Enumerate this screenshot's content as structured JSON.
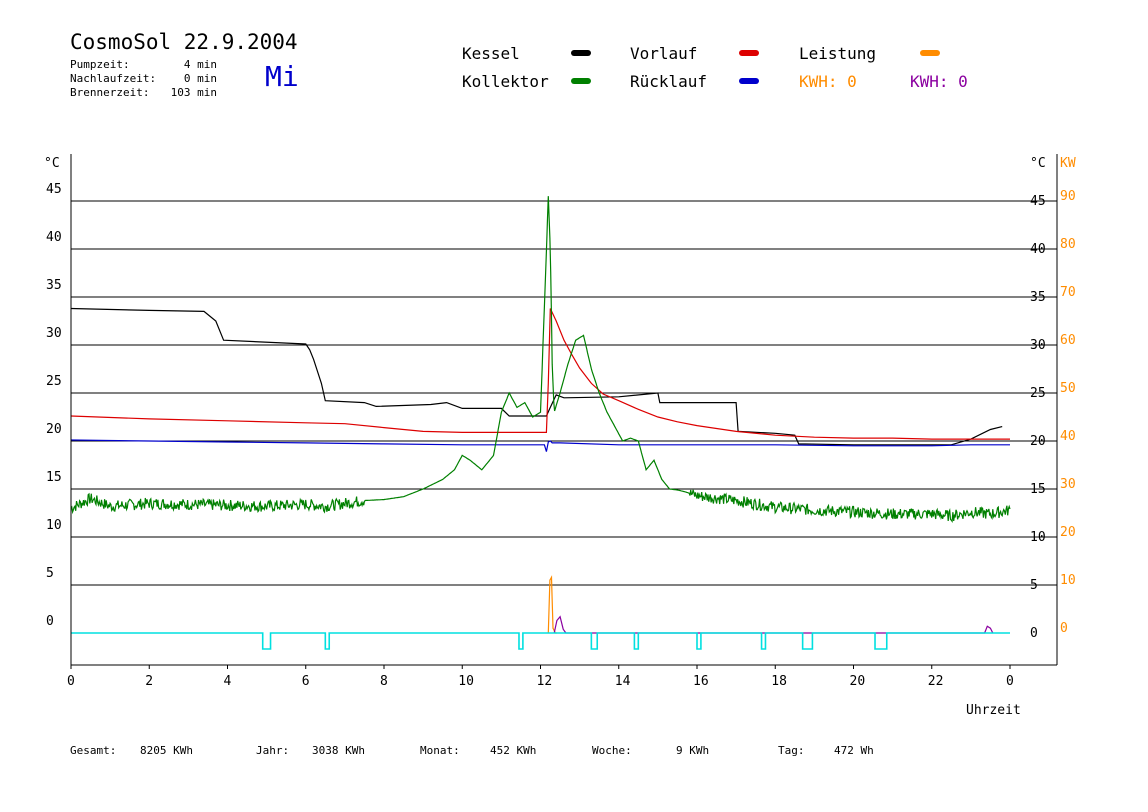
{
  "header": {
    "title": "CosmoSol 22.9.2004",
    "day": "Mi",
    "pump_label": "Pumpzeit:",
    "pump_value": "4 min",
    "follow_label": "Nachlaufzeit:",
    "follow_value": "0 min",
    "burner_label": "Brennerzeit:",
    "burner_value": "103 min"
  },
  "legend": {
    "kessel": "Kessel",
    "kollektor": "Kollektor",
    "vorlauf": "Vorlauf",
    "ruecklauf": "Rücklauf",
    "leistung": "Leistung",
    "kwh1": "KWH: 0",
    "kwh2": "KWH: 0"
  },
  "colors": {
    "kessel": "#000000",
    "kollektor": "#008000",
    "vorlauf": "#dd0000",
    "ruecklauf": "#0000cc",
    "leistung": "#ff8c00",
    "kwh2": "#8b00a0",
    "pump": "#00e0e0"
  },
  "footer": {
    "gesamt_label": "Gesamt:",
    "gesamt_value": "8205 KWh",
    "jahr_label": "Jahr:",
    "jahr_value": "3038 KWh",
    "monat_label": "Monat:",
    "monat_value": "452 KWh",
    "woche_label": "Woche:",
    "woche_value": "9 KWh",
    "tag_label": "Tag:",
    "tag_value": "472 Wh"
  },
  "chart_data": {
    "type": "line",
    "xlabel": "Uhrzeit",
    "ylabel_left": "°C",
    "ylabel_right": "°C",
    "ylabel_right2": "KW",
    "x_ticks": [
      "0",
      "2",
      "4",
      "6",
      "8",
      "10",
      "12",
      "14",
      "16",
      "18",
      "20",
      "22",
      "0"
    ],
    "y_ticks": [
      0,
      5,
      10,
      15,
      20,
      25,
      30,
      35,
      40,
      45
    ],
    "y2_ticks": [
      0,
      10,
      20,
      30,
      40,
      50,
      60,
      70,
      80,
      90
    ],
    "ylim": [
      -3,
      50
    ],
    "xlim": [
      0,
      24
    ],
    "series": [
      {
        "name": "Kessel",
        "color_key": "kessel",
        "x": [
          0,
          2,
          3.4,
          3.7,
          3.9,
          6.0,
          6.1,
          6.2,
          6.4,
          6.5,
          7.5,
          7.8,
          9.2,
          9.6,
          10.0,
          11.0,
          11.2,
          12.15,
          12.25,
          12.4,
          12.6,
          14.0,
          15.0,
          15.05,
          17.0,
          17.05,
          18.0,
          18.5,
          18.6,
          20.0,
          22.5,
          23.0,
          23.5,
          23.8
        ],
        "y": [
          33.8,
          33.6,
          33.5,
          32.5,
          30.5,
          30.1,
          29.5,
          28.5,
          26.0,
          24.2,
          24.0,
          23.6,
          23.8,
          24.0,
          23.4,
          23.4,
          22.6,
          22.6,
          23.5,
          24.8,
          24.5,
          24.6,
          25.0,
          24.0,
          24.0,
          21.0,
          20.8,
          20.6,
          19.7,
          19.6,
          19.6,
          20.2,
          21.2,
          21.5
        ]
      },
      {
        "name": "Vorlauf",
        "color_key": "vorlauf",
        "x": [
          0,
          2,
          4,
          6,
          7,
          8,
          9,
          10,
          11,
          12.1,
          12.15,
          12.2,
          12.25,
          12.4,
          12.6,
          12.8,
          13.0,
          13.3,
          13.6,
          14,
          14.5,
          15,
          15.5,
          16,
          17,
          18,
          19,
          20,
          21,
          22,
          23,
          24
        ],
        "y": [
          22.6,
          22.3,
          22.1,
          21.9,
          21.8,
          21.4,
          21.0,
          20.9,
          20.9,
          20.9,
          20.9,
          26.0,
          33.8,
          32.5,
          30.5,
          29.0,
          27.6,
          26.0,
          24.9,
          24.2,
          23.3,
          22.5,
          22.0,
          21.6,
          21.0,
          20.6,
          20.4,
          20.3,
          20.3,
          20.2,
          20.2,
          20.2
        ]
      },
      {
        "name": "Rücklauf",
        "color_key": "ruecklauf",
        "x": [
          0,
          2,
          4,
          6,
          8,
          10,
          12.1,
          12.15,
          12.2,
          12.25,
          12.3,
          12.5,
          14,
          16,
          18,
          20,
          22,
          23,
          24
        ],
        "y": [
          20.1,
          20.0,
          19.9,
          19.8,
          19.7,
          19.6,
          19.6,
          18.9,
          19.9,
          20.0,
          19.8,
          19.8,
          19.6,
          19.6,
          19.6,
          19.5,
          19.5,
          19.6,
          19.6
        ]
      },
      {
        "name": "Kollektor",
        "color_key": "kollektor",
        "noise": true,
        "x": [
          0,
          0.5,
          1,
          2,
          3,
          4,
          5,
          6,
          6.5,
          7,
          7.5,
          8,
          8.5,
          9,
          9.5,
          9.8,
          10,
          10.2,
          10.5,
          10.8,
          11,
          11.2,
          11.4,
          11.6,
          11.8,
          12.0,
          12.1,
          12.2,
          12.25,
          12.3,
          12.35,
          12.5,
          12.7,
          12.9,
          13.1,
          13.3,
          13.5,
          13.7,
          13.9,
          14.1,
          14.3,
          14.5,
          14.7,
          14.9,
          15.1,
          15.3,
          15.5,
          15.7,
          16,
          17,
          18,
          19,
          20,
          21,
          22,
          22.5,
          23,
          23.5,
          24
        ],
        "y": [
          13.0,
          14.0,
          13.2,
          13.5,
          13.4,
          13.3,
          13.2,
          13.4,
          13.2,
          13.5,
          13.8,
          13.9,
          14.2,
          15.0,
          16.0,
          17.0,
          18.5,
          18.0,
          17.0,
          18.5,
          23.0,
          25.0,
          23.5,
          24.0,
          22.5,
          23.0,
          34.0,
          45.5,
          40.0,
          28.0,
          23.0,
          25.0,
          28.0,
          30.5,
          31.0,
          27.5,
          25.0,
          23.0,
          21.5,
          20.0,
          20.3,
          20.0,
          17.0,
          18.0,
          16.0,
          15.0,
          14.9,
          14.7,
          14.3,
          13.8,
          13.1,
          12.8,
          12.6,
          12.4,
          12.4,
          12.2,
          12.6,
          12.4,
          12.8
        ]
      },
      {
        "name": "Leistung",
        "color_key": "leistung",
        "x": [
          12.2,
          12.24,
          12.28,
          12.32,
          12.38,
          12.42
        ],
        "y": [
          0,
          5.5,
          5.8,
          0.5,
          0,
          0
        ]
      },
      {
        "name": "KWH",
        "color_key": "kwh2",
        "x": [
          12.35,
          12.42,
          12.5,
          12.58,
          12.65,
          23.35,
          23.42,
          23.5,
          23.56
        ],
        "y": [
          0,
          1.3,
          1.7,
          0.4,
          0,
          0,
          0.7,
          0.5,
          0
        ]
      },
      {
        "name": "Pumpe",
        "color_key": "pump",
        "pulses": [
          [
            4.9,
            5.1
          ],
          [
            6.5,
            6.6
          ],
          [
            11.45,
            11.55
          ],
          [
            13.3,
            13.45
          ],
          [
            14.4,
            14.5
          ],
          [
            16.0,
            16.1
          ],
          [
            17.65,
            17.75
          ],
          [
            18.7,
            18.95
          ],
          [
            20.55,
            20.85
          ]
        ]
      }
    ]
  }
}
